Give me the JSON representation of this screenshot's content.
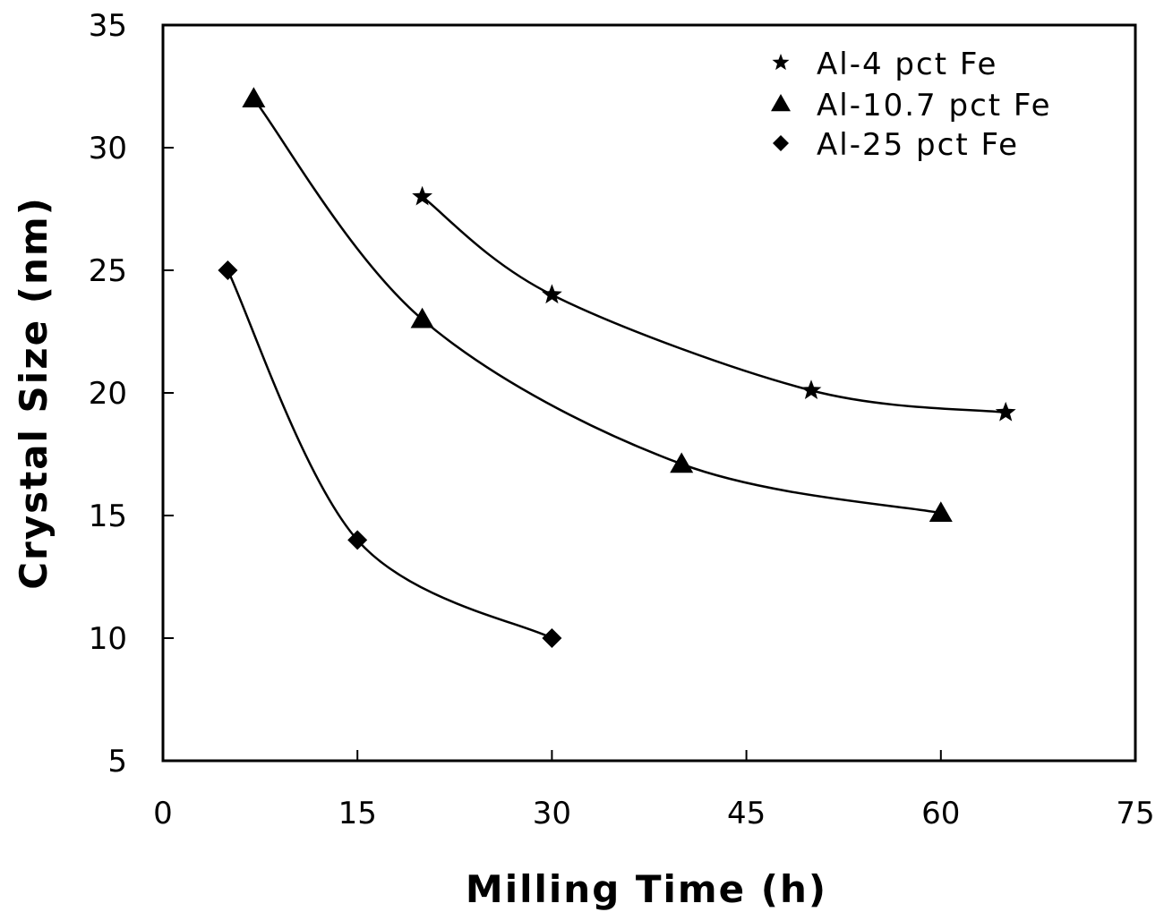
{
  "chart_data": {
    "type": "scatter",
    "xlabel": "Milling Time (h)",
    "ylabel": "Crystal Size (nm)",
    "xlim": [
      0,
      75
    ],
    "ylim": [
      5,
      35
    ],
    "xticks": [
      "0",
      "15",
      "30",
      "45",
      "60",
      "75"
    ],
    "yticks": [
      "5",
      "10",
      "15",
      "20",
      "25",
      "30",
      "35"
    ],
    "grid": false,
    "legend_position": "top-right",
    "series": [
      {
        "name": "Al-4 pct Fe",
        "marker": "star",
        "x": [
          20,
          30,
          50,
          65
        ],
        "y": [
          28,
          24,
          20.1,
          19.2
        ]
      },
      {
        "name": "Al-10.7 pct Fe",
        "marker": "triangle",
        "x": [
          7,
          20,
          40,
          60
        ],
        "y": [
          32,
          23,
          17.1,
          15.1
        ]
      },
      {
        "name": "Al-25 pct Fe",
        "marker": "diamond",
        "x": [
          5,
          15,
          30
        ],
        "y": [
          25,
          14,
          10
        ]
      }
    ],
    "colors": {
      "ink": "#000000",
      "background": "#ffffff"
    }
  }
}
